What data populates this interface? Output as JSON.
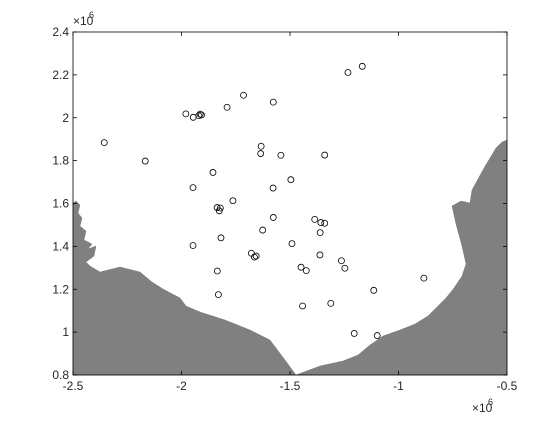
{
  "chart_data": {
    "type": "scatter",
    "title": "",
    "xlabel": "",
    "ylabel": "",
    "xlim": [
      -2500000,
      -500000
    ],
    "ylim": [
      800000,
      2400000
    ],
    "x_ticks": [
      -2500000,
      -2000000,
      -1500000,
      -1000000,
      -500000
    ],
    "x_tick_labels": [
      "-2.5",
      "-2",
      "-1.5",
      "-1",
      "-0.5"
    ],
    "y_ticks": [
      800000,
      1000000,
      1200000,
      1400000,
      1600000,
      1800000,
      2000000,
      2200000,
      2400000
    ],
    "y_tick_labels": [
      "0.8",
      "1",
      "1.2",
      "1.4",
      "1.6",
      "1.8",
      "2",
      "2.2",
      "2.4"
    ],
    "x_exponent_label": "×10",
    "x_exponent_power": "6",
    "y_exponent_label": "×10",
    "y_exponent_power": "6",
    "grid": false,
    "marker": "open-circle",
    "land_color": "#808080",
    "marker_color": "#000000",
    "series": [
      {
        "x": [
          -2356000,
          -2167000,
          -1980000,
          -1946000,
          -1920000,
          -1914000,
          -1908000,
          -1790000,
          -1714000,
          -1577000,
          -1633000,
          -1635000,
          -1542000,
          -1340000,
          -1233000,
          -1167000,
          -1578000,
          -1496000,
          -1855000,
          -1947000,
          -1763000,
          -1836000,
          -1826000,
          -1821000,
          -1577000,
          -1626000,
          -1358000,
          -1340000,
          -1386000,
          -1361000,
          -1362000,
          -1818000,
          -1947000,
          -1678000,
          -1664000,
          -1656000,
          -1491000,
          -1449000,
          -1425000,
          -1835000,
          -1263000,
          -1247000,
          -1830000,
          -1442000,
          -1312000,
          -1114000,
          -883000,
          -1204000,
          -1098000
        ],
        "y": [
          1884000,
          1798000,
          2018000,
          2002000,
          2010000,
          2017000,
          2013000,
          2049000,
          2105000,
          2073000,
          1867000,
          1833000,
          1825000,
          1826000,
          2211000,
          2240000,
          1672000,
          1711000,
          1745000,
          1674000,
          1613000,
          1581000,
          1566000,
          1579000,
          1535000,
          1476000,
          1511000,
          1508000,
          1526000,
          1464000,
          1360000,
          1440000,
          1404000,
          1368000,
          1350000,
          1355000,
          1413000,
          1303000,
          1287000,
          1285000,
          1333000,
          1298000,
          1175000,
          1122000,
          1134000,
          1195000,
          1252000,
          994000,
          984000
        ]
      }
    ]
  }
}
